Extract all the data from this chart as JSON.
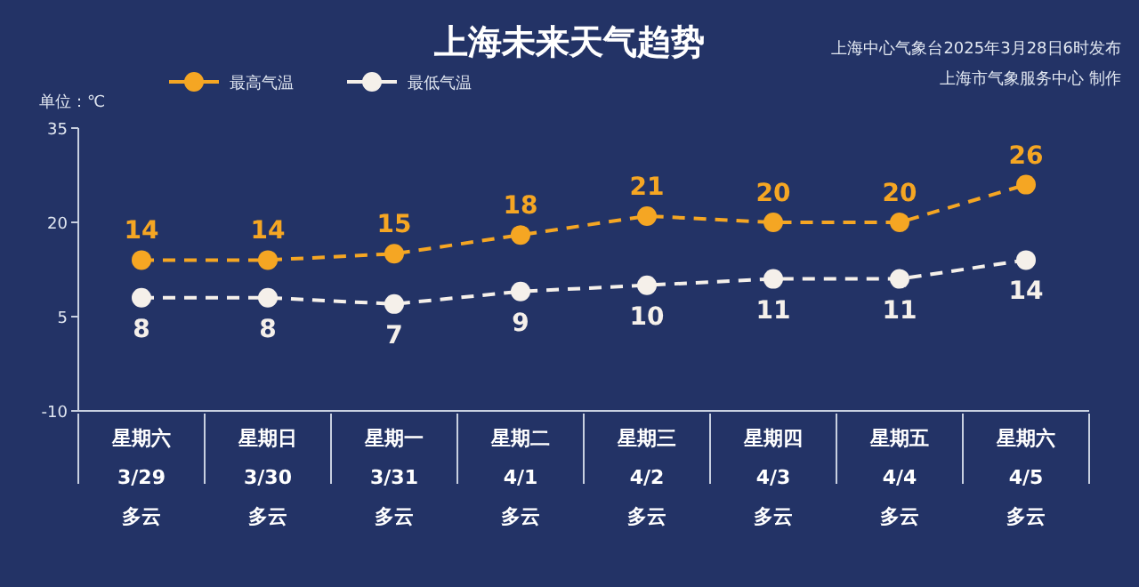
{
  "chart_data": {
    "type": "line",
    "title": "上海未来天气趋势",
    "annotations": [
      "上海中心气象台2025年3月28日6时发布",
      "上海市气象服务中心 制作"
    ],
    "ylabel": "单位：℃",
    "categories": [
      "星期六\n3/29\n多云",
      "星期日\n3/30\n多云",
      "星期一\n3/31\n多云",
      "星期二\n4/1\n多云",
      "星期三\n4/2\n多云",
      "星期四\n4/3\n多云",
      "星期五\n4/4\n多云",
      "星期六\n4/5\n多云"
    ],
    "series": [
      {
        "name": "最高气温",
        "color": "#f5a623",
        "values": [
          14,
          14,
          15,
          18,
          21,
          20,
          20,
          26
        ]
      },
      {
        "name": "最低气温",
        "color": "#f5f0ea",
        "values": [
          8,
          8,
          7,
          9,
          10,
          11,
          11,
          14
        ]
      }
    ],
    "ylim": [
      -10,
      35
    ],
    "yticks": [
      -10,
      5,
      20,
      35
    ],
    "data_labels": true,
    "legend": "top left",
    "marker": "circle",
    "line_style": "dashed"
  }
}
